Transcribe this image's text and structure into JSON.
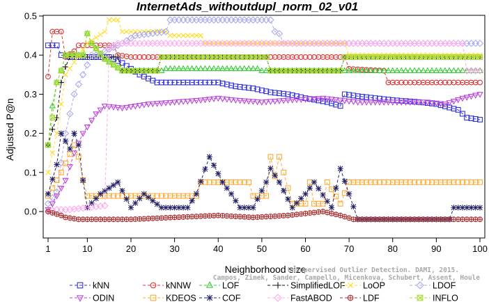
{
  "chart_data": {
    "type": "line",
    "title": "InternetAds_withoutdupl_norm_02_v01",
    "xlabel": "Neighborhood size",
    "ylabel": "Adjusted P@n",
    "xlim": [
      1,
      100
    ],
    "ylim": [
      -0.03,
      0.5
    ],
    "x_ticks": [
      1,
      10,
      20,
      30,
      40,
      50,
      60,
      70,
      80,
      90,
      100
    ],
    "y_ticks": [
      0.0,
      0.1,
      0.2,
      0.3,
      0.4,
      0.5
    ],
    "y_tick_labels": [
      "0.0",
      "0.1",
      "0.2",
      "0.3",
      "0.4",
      "0.5"
    ],
    "credit": [
      "Unsupervised Outlier Detection. DAMI, 2015.",
      "Campos, Zimek, Sander, Campello, Micenkova, Schubert, Assent, Houle"
    ],
    "series": [
      {
        "name": "kNN",
        "color": "#3333dd",
        "marker": "square",
        "points": [
          [
            1,
            0.425
          ],
          [
            3,
            0.425
          ],
          [
            4,
            0.4
          ],
          [
            6,
            0.395
          ],
          [
            15,
            0.395
          ],
          [
            18,
            0.38
          ],
          [
            20,
            0.365
          ],
          [
            22,
            0.35
          ],
          [
            24,
            0.34
          ],
          [
            26,
            0.33
          ],
          [
            40,
            0.33
          ],
          [
            42,
            0.325
          ],
          [
            44,
            0.32
          ],
          [
            48,
            0.315
          ],
          [
            52,
            0.305
          ],
          [
            56,
            0.3
          ],
          [
            60,
            0.29
          ],
          [
            65,
            0.28
          ],
          [
            68,
            0.27
          ],
          [
            69,
            0.3
          ],
          [
            72,
            0.295
          ],
          [
            76,
            0.29
          ],
          [
            80,
            0.285
          ],
          [
            86,
            0.28
          ],
          [
            90,
            0.275
          ],
          [
            95,
            0.26
          ],
          [
            97,
            0.24
          ],
          [
            100,
            0.235
          ]
        ]
      },
      {
        "name": "kNNW",
        "color": "#dd3333",
        "marker": "circle",
        "points": [
          [
            1,
            0.345
          ],
          [
            2,
            0.46
          ],
          [
            4,
            0.46
          ],
          [
            5,
            0.395
          ],
          [
            7,
            0.41
          ],
          [
            8,
            0.425
          ],
          [
            16,
            0.425
          ],
          [
            17,
            0.4
          ],
          [
            20,
            0.395
          ],
          [
            69,
            0.395
          ],
          [
            70,
            0.365
          ],
          [
            78,
            0.36
          ],
          [
            79,
            0.33
          ],
          [
            100,
            0.33
          ]
        ]
      },
      {
        "name": "LOF",
        "color": "#33cc33",
        "marker": "triangle-up",
        "points": [
          [
            1,
            0.17
          ],
          [
            2,
            0.27
          ],
          [
            3,
            0.33
          ],
          [
            4,
            0.36
          ],
          [
            5,
            0.4
          ],
          [
            9,
            0.4
          ],
          [
            10,
            0.455
          ],
          [
            11,
            0.43
          ],
          [
            14,
            0.39
          ],
          [
            18,
            0.36
          ],
          [
            27,
            0.36
          ],
          [
            28,
            0.365
          ],
          [
            49,
            0.365
          ],
          [
            50,
            0.36
          ],
          [
            100,
            0.36
          ]
        ]
      },
      {
        "name": "SimplifiedLOF",
        "color": "#111111",
        "marker": "plus",
        "points": [
          [
            1,
            0.17
          ],
          [
            2,
            0.21
          ],
          [
            3,
            0.24
          ],
          [
            4,
            0.33
          ],
          [
            5,
            0.37
          ],
          [
            6,
            0.395
          ],
          [
            17,
            0.395
          ],
          [
            18,
            0.36
          ],
          [
            26,
            0.36
          ],
          [
            27,
            0.395
          ],
          [
            51,
            0.395
          ],
          [
            52,
            0.36
          ],
          [
            68,
            0.36
          ],
          [
            69,
            0.395
          ],
          [
            100,
            0.395
          ]
        ]
      },
      {
        "name": "LoOP",
        "color": "#ffdd33",
        "marker": "x",
        "points": [
          [
            1,
            0.1
          ],
          [
            3,
            0.2
          ],
          [
            5,
            0.35
          ],
          [
            10,
            0.43
          ],
          [
            14,
            0.46
          ],
          [
            15,
            0.49
          ],
          [
            17,
            0.49
          ],
          [
            18,
            0.46
          ],
          [
            28,
            0.46
          ],
          [
            29,
            0.45
          ],
          [
            36,
            0.45
          ],
          [
            37,
            0.43
          ],
          [
            69,
            0.43
          ],
          [
            70,
            0.4
          ],
          [
            100,
            0.4
          ]
        ]
      },
      {
        "name": "LDOF",
        "color": "#aaaaee",
        "marker": "diamond",
        "points": [
          [
            1,
            0.02
          ],
          [
            3,
            0.05
          ],
          [
            5,
            0.2
          ],
          [
            7,
            0.3
          ],
          [
            9,
            0.35
          ],
          [
            11,
            0.4
          ],
          [
            13,
            0.4
          ],
          [
            14,
            0.41
          ],
          [
            18,
            0.43
          ],
          [
            21,
            0.45
          ],
          [
            28,
            0.46
          ],
          [
            29,
            0.49
          ],
          [
            52,
            0.49
          ],
          [
            53,
            0.46
          ],
          [
            54,
            0.455
          ],
          [
            55,
            0.43
          ],
          [
            100,
            0.43
          ]
        ]
      },
      {
        "name": "ODIN",
        "color": "#bb44dd",
        "marker": "triangle-down",
        "points": [
          [
            1,
            0.005
          ],
          [
            2,
            0.02
          ],
          [
            3,
            0.04
          ],
          [
            5,
            0.08
          ],
          [
            7,
            0.15
          ],
          [
            9,
            0.2
          ],
          [
            12,
            0.25
          ],
          [
            14,
            0.27
          ],
          [
            18,
            0.265
          ],
          [
            24,
            0.275
          ],
          [
            30,
            0.28
          ],
          [
            36,
            0.285
          ],
          [
            40,
            0.29
          ],
          [
            44,
            0.285
          ],
          [
            50,
            0.28
          ],
          [
            56,
            0.285
          ],
          [
            64,
            0.29
          ],
          [
            68,
            0.285
          ],
          [
            72,
            0.28
          ],
          [
            80,
            0.28
          ],
          [
            88,
            0.28
          ],
          [
            92,
            0.275
          ],
          [
            96,
            0.29
          ],
          [
            100,
            0.3
          ]
        ]
      },
      {
        "name": "KDEOS",
        "color": "#ffaa33",
        "marker": "square",
        "points": [
          [
            1,
            0.04
          ],
          [
            4,
            0.1
          ],
          [
            7,
            0.17
          ],
          [
            8,
            0.14
          ],
          [
            9,
            0.08
          ],
          [
            10,
            0.04
          ],
          [
            35,
            0.04
          ],
          [
            36,
            0.075
          ],
          [
            47,
            0.075
          ],
          [
            48,
            0.04
          ],
          [
            51,
            0.04
          ],
          [
            52,
            0.14
          ],
          [
            53,
            0.09
          ],
          [
            54,
            0.14
          ],
          [
            56,
            0.06
          ],
          [
            57,
            0.02
          ],
          [
            60,
            0.02
          ],
          [
            61,
            0.075
          ],
          [
            62,
            0.02
          ],
          [
            64,
            0.02
          ],
          [
            65,
            0.075
          ],
          [
            68,
            0.02
          ],
          [
            70,
            0.075
          ],
          [
            100,
            0.075
          ]
        ]
      },
      {
        "name": "COF",
        "color": "#222266",
        "marker": "star",
        "points": [
          [
            1,
            0.045
          ],
          [
            3,
            0.12
          ],
          [
            4,
            0.2
          ],
          [
            6,
            0.16
          ],
          [
            7,
            0.2
          ],
          [
            8,
            0.17
          ],
          [
            9,
            0.08
          ],
          [
            10,
            0.01
          ],
          [
            13,
            0.045
          ],
          [
            17,
            0.075
          ],
          [
            20,
            0.01
          ],
          [
            23,
            0.045
          ],
          [
            27,
            0.01
          ],
          [
            30,
            0.01
          ],
          [
            33,
            0.01
          ],
          [
            35,
            0.045
          ],
          [
            38,
            0.14
          ],
          [
            41,
            0.075
          ],
          [
            43,
            0.045
          ],
          [
            45,
            0.01
          ],
          [
            48,
            0.01
          ],
          [
            51,
            0.075
          ],
          [
            52,
            0.11
          ],
          [
            54,
            0.075
          ],
          [
            57,
            0.01
          ],
          [
            60,
            0.045
          ],
          [
            62,
            0.075
          ],
          [
            66,
            0.01
          ],
          [
            68,
            0.11
          ],
          [
            70,
            0.045
          ],
          [
            72,
            -0.02
          ],
          [
            93,
            -0.02
          ],
          [
            94,
            0.01
          ],
          [
            100,
            0.01
          ]
        ]
      },
      {
        "name": "FastABOD",
        "color": "#ffaaee",
        "marker": "diamond",
        "points": [
          [
            1,
            0.0
          ],
          [
            3,
            0.005
          ],
          [
            6,
            0.005
          ],
          [
            10,
            0.01
          ],
          [
            14,
            0.015
          ],
          [
            15,
            0.42
          ],
          [
            16,
            0.425
          ],
          [
            17,
            0.43
          ],
          [
            96,
            0.43
          ],
          [
            97,
            0.36
          ],
          [
            100,
            0.36
          ]
        ]
      },
      {
        "name": "LDF",
        "color": "#aa3333",
        "marker": "circle-plus",
        "points": [
          [
            1,
            0.0
          ],
          [
            4,
            -0.01
          ],
          [
            5,
            -0.015
          ],
          [
            8,
            -0.02
          ],
          [
            20,
            -0.02
          ],
          [
            30,
            -0.015
          ],
          [
            40,
            -0.01
          ],
          [
            48,
            -0.015
          ],
          [
            56,
            -0.01
          ],
          [
            64,
            0.0
          ],
          [
            68,
            -0.01
          ],
          [
            71,
            -0.02
          ],
          [
            100,
            -0.02
          ]
        ]
      },
      {
        "name": "INFLO",
        "color": "#aadd33",
        "marker": "square-x",
        "points": [
          [
            1,
            0.17
          ],
          [
            2,
            0.24
          ],
          [
            3,
            0.33
          ],
          [
            4,
            0.36
          ],
          [
            5,
            0.4
          ],
          [
            9,
            0.4
          ],
          [
            10,
            0.455
          ],
          [
            11,
            0.43
          ],
          [
            14,
            0.39
          ],
          [
            18,
            0.36
          ],
          [
            26,
            0.36
          ],
          [
            27,
            0.395
          ],
          [
            51,
            0.395
          ],
          [
            52,
            0.36
          ],
          [
            68,
            0.36
          ],
          [
            69,
            0.395
          ],
          [
            100,
            0.395
          ]
        ]
      }
    ]
  }
}
